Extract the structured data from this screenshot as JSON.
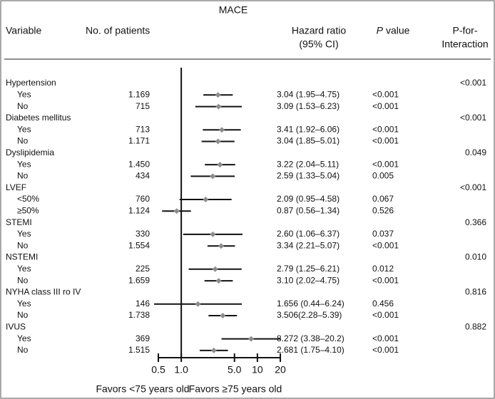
{
  "chart_data": {
    "type": "forest",
    "title": "MACE",
    "headers": {
      "variable": "Variable",
      "patients": "No. of patients",
      "hr": [
        "Hazard ratio",
        "(95% CI)"
      ],
      "p": [
        "P",
        "value"
      ],
      "interaction": [
        "P-for-",
        "Interaction"
      ]
    },
    "xscale": "log",
    "xlim": [
      0.5,
      20
    ],
    "xticks": [
      0.5,
      {
        "value": 1,
        "label": "1.0"
      },
      {
        "value": 5,
        "label": "5.0"
      },
      10,
      20
    ],
    "reference": 1,
    "marker_color": "#8c8c8c",
    "footer": [
      "Favors <75 years old",
      "Favors ≥75 years old"
    ],
    "groups": [
      {
        "name": "Hypertension",
        "interaction": "<0.001",
        "rows": [
          {
            "label": "Yes",
            "n": "1.169",
            "hr": 3.04,
            "lo": 1.95,
            "hi": 4.75,
            "ci_label": "3.04 (1.95–4.75)",
            "p": "<0.001"
          },
          {
            "label": "No",
            "n": "715",
            "hr": 3.09,
            "lo": 1.53,
            "hi": 6.23,
            "ci_label": "3.09 (1.53–6.23)",
            "p": "<0.001"
          }
        ]
      },
      {
        "name": "Diabetes mellitus",
        "interaction": "<0.001",
        "rows": [
          {
            "label": "Yes",
            "n": "713",
            "hr": 3.41,
            "lo": 1.92,
            "hi": 6.06,
            "ci_label": "3.41 (1.92–6.06)",
            "p": "<0.001"
          },
          {
            "label": "No",
            "n": "1.171",
            "hr": 3.04,
            "lo": 1.85,
            "hi": 5.01,
            "ci_label": "3.04 (1.85–5.01)",
            "p": "<0.001"
          }
        ]
      },
      {
        "name": "Dyslipidemia",
        "interaction": "0.049",
        "rows": [
          {
            "label": "Yes",
            "n": "1.450",
            "hr": 3.22,
            "lo": 2.04,
            "hi": 5.11,
            "ci_label": "3.22 (2.04–5.11)",
            "p": "<0.001"
          },
          {
            "label": "No",
            "n": "434",
            "hr": 2.59,
            "lo": 1.33,
            "hi": 5.04,
            "ci_label": "2.59 (1.33–5.04)",
            "p": "0.005"
          }
        ]
      },
      {
        "name": "LVEF",
        "interaction": "<0.001",
        "rows": [
          {
            "label": "<50%",
            "n": "760",
            "hr": 2.09,
            "lo": 0.95,
            "hi": 4.58,
            "ci_label": "2.09 (0.95–4.58)",
            "p": "0.067"
          },
          {
            "label": "≥50%",
            "n": "1.124",
            "hr": 0.87,
            "lo": 0.56,
            "hi": 1.34,
            "ci_label": "0.87 (0.56–1.34)",
            "p": "0.526"
          }
        ]
      },
      {
        "name": "STEMI",
        "interaction": "0.366",
        "rows": [
          {
            "label": "Yes",
            "n": "330",
            "hr": 2.6,
            "lo": 1.06,
            "hi": 6.37,
            "ci_label": "2.60 (1.06–6.37)",
            "p": "0.037"
          },
          {
            "label": "No",
            "n": "1.554",
            "hr": 3.34,
            "lo": 2.21,
            "hi": 5.07,
            "ci_label": "3.34 (2.21–5.07)",
            "p": "<0.001"
          }
        ]
      },
      {
        "name": "NSTEMI",
        "interaction": "0.010",
        "rows": [
          {
            "label": "Yes",
            "n": "225",
            "hr": 2.79,
            "lo": 1.25,
            "hi": 6.21,
            "ci_label": "2.79 (1.25–6.21)",
            "p": "0.012"
          },
          {
            "label": "No",
            "n": "1.659",
            "hr": 3.1,
            "lo": 2.02,
            "hi": 4.75,
            "ci_label": "3.10 (2.02–4.75)",
            "p": "<0.001"
          }
        ]
      },
      {
        "name": "NYHA class III ro IV",
        "interaction": "0.816",
        "rows": [
          {
            "label": "Yes",
            "n": "146",
            "hr": 1.656,
            "lo": 0.44,
            "hi": 6.24,
            "ci_label": "1.656 (0.44–6.24)",
            "p": "0.456"
          },
          {
            "label": "No",
            "n": "1.738",
            "hr": 3.506,
            "lo": 2.28,
            "hi": 5.39,
            "ci_label": "3.506(2.28–5.39)",
            "p": "<0.001"
          }
        ]
      },
      {
        "name": "IVUS",
        "interaction": "0.882",
        "rows": [
          {
            "label": "Yes",
            "n": "369",
            "hr": 8.272,
            "lo": 3.38,
            "hi": 20.2,
            "ci_label": "8.272 (3.38–20.2)",
            "p": "<0.001"
          },
          {
            "label": "No",
            "n": "1.515",
            "hr": 2.681,
            "lo": 1.75,
            "hi": 4.1,
            "ci_label": "2.681 (1.75–4.10)",
            "p": "<0.001"
          }
        ]
      }
    ]
  }
}
